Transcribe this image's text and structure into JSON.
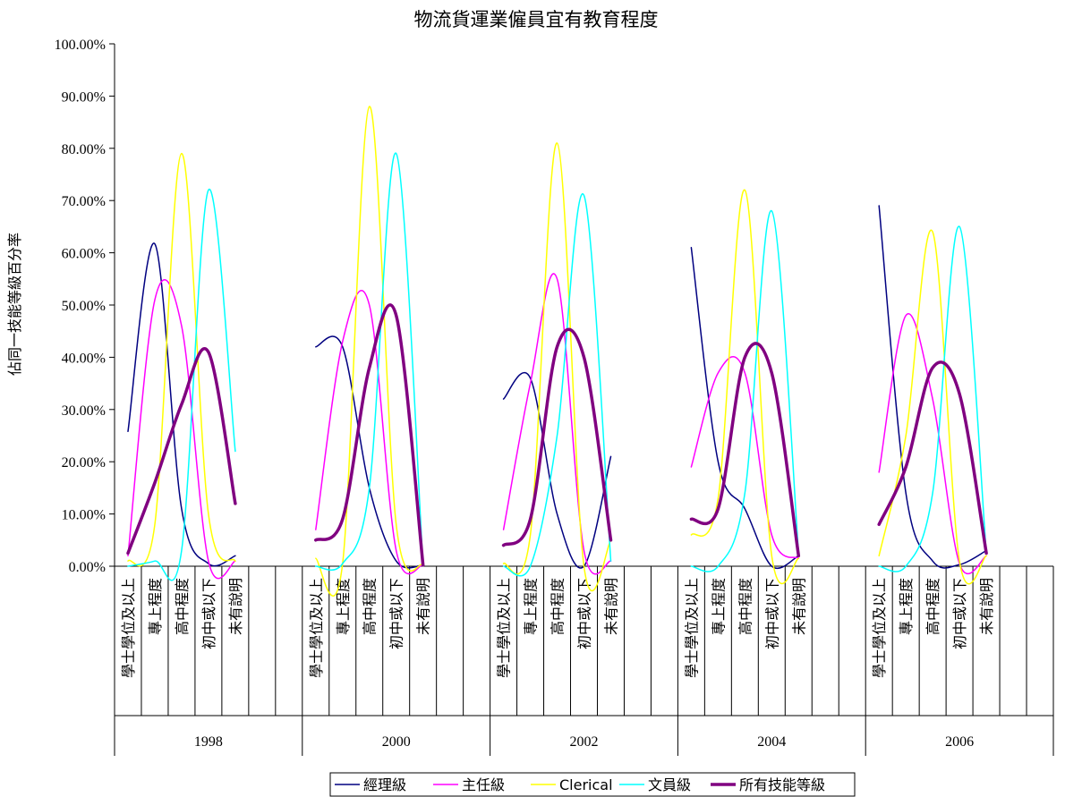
{
  "chart_data": {
    "type": "line",
    "title": "物流貨運業僱員宜有教育程度",
    "ylabel": "佔同一技能等級百分率",
    "ylim": [
      0,
      100
    ],
    "y_ticks": [
      "0.00%",
      "10.00%",
      "20.00%",
      "30.00%",
      "40.00%",
      "50.00%",
      "60.00%",
      "70.00%",
      "80.00%",
      "90.00%",
      "100.00%"
    ],
    "groups": [
      "1998",
      "2000",
      "2002",
      "2004",
      "2006"
    ],
    "categories": [
      "學士學位及以上",
      "專上程度",
      "高中程度",
      "初中或以下",
      "未有說明"
    ],
    "series": [
      {
        "name": "經理級",
        "color": "#000080",
        "width": 1.5,
        "values": [
          [
            25.8,
            61.7,
            11.0,
            0.5,
            2.0
          ],
          [
            42.0,
            42.0,
            15.0,
            1.0,
            0.2
          ],
          [
            32.0,
            36.0,
            10.0,
            0.0,
            21.0
          ],
          [
            61.0,
            20.0,
            11.0,
            0.0,
            2.0
          ],
          [
            69.0,
            14.0,
            1.0,
            0.3,
            3.0
          ]
        ]
      },
      {
        "name": "主任級",
        "color": "#ff00ff",
        "width": 1.5,
        "values": [
          [
            2.0,
            51.0,
            46.0,
            1.0,
            1.0
          ],
          [
            7.0,
            43.0,
            50.0,
            3.0,
            0.2
          ],
          [
            7.0,
            35.0,
            55.0,
            3.0,
            1.0
          ],
          [
            19.0,
            37.0,
            37.0,
            6.0,
            1.5
          ],
          [
            18.0,
            48.0,
            32.0,
            0.5,
            2.0
          ]
        ]
      },
      {
        "name": "Clerical",
        "color": "#ffff00",
        "width": 1.5,
        "values": [
          [
            1.0,
            8.0,
            79.0,
            10.0,
            1.0
          ],
          [
            1.5,
            0.5,
            88.0,
            8.0,
            0.2
          ],
          [
            0.5,
            6.0,
            81.0,
            0.0,
            5.0
          ],
          [
            6.0,
            13.0,
            72.0,
            2.0,
            1.5
          ],
          [
            2.0,
            25.0,
            64.0,
            1.0,
            2.0
          ]
        ]
      },
      {
        "name": "文員級",
        "color": "#00ffff",
        "width": 1.5,
        "values": [
          [
            0.0,
            1.0,
            3.0,
            72.0,
            22.0
          ],
          [
            0.0,
            0.5,
            15.0,
            79.0,
            0.2
          ],
          [
            0.0,
            0.0,
            25.0,
            71.0,
            1.0
          ],
          [
            0.0,
            0.0,
            14.0,
            68.0,
            2.5
          ],
          [
            0.0,
            0.0,
            14.0,
            65.0,
            2.5
          ]
        ]
      },
      {
        "name": "所有技能等級",
        "color": "#800080",
        "width": 3.5,
        "values": [
          [
            2.5,
            16.0,
            31.0,
            41.0,
            12.0
          ],
          [
            5.0,
            9.0,
            38.0,
            48.0,
            0.2
          ],
          [
            4.0,
            9.0,
            42.0,
            40.0,
            5.0
          ],
          [
            9.0,
            11.0,
            40.0,
            37.0,
            2.0
          ],
          [
            8.0,
            19.0,
            38.0,
            33.0,
            2.5
          ]
        ]
      }
    ],
    "legend_position": "bottom-center",
    "grid": false
  }
}
